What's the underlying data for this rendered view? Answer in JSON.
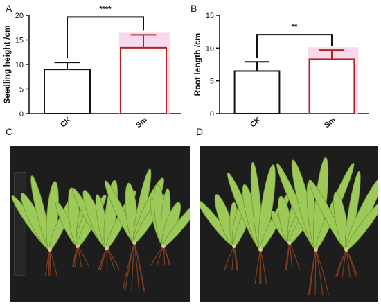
{
  "panels": {
    "a": "A",
    "b": "B",
    "c": "C",
    "d": "D"
  },
  "colors": {
    "ck": "#111111",
    "sm": "#b22222",
    "error_shadow": "#f9c9e6",
    "photo_bg": "#1d1d1d",
    "leaf": "#9cc957",
    "root": "#7a3b1e"
  },
  "chart_data": [
    {
      "type": "bar",
      "categories": [
        "CK",
        "Sm"
      ],
      "values": [
        9.0,
        13.4
      ],
      "errors": [
        1.4,
        2.6
      ],
      "xlabel": "",
      "ylabel": "Seedling height /cm",
      "ylim": [
        0,
        20
      ],
      "yticks": [
        0,
        5,
        10,
        15,
        20
      ],
      "significance": "****",
      "grid": false
    },
    {
      "type": "bar",
      "categories": [
        "CK",
        "Sm"
      ],
      "values": [
        6.5,
        8.3
      ],
      "errors": [
        1.4,
        1.4
      ],
      "xlabel": "",
      "ylabel": "Root length /cm",
      "ylim": [
        0,
        15
      ],
      "yticks": [
        0,
        5,
        10,
        15
      ],
      "significance": "**",
      "grid": false
    }
  ]
}
